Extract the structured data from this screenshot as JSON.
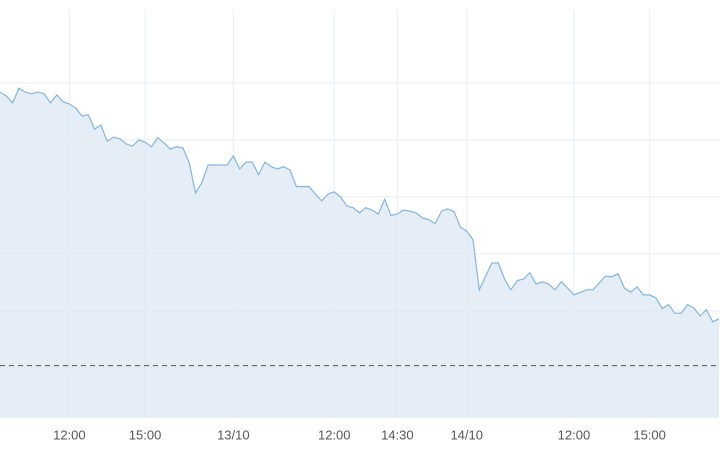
{
  "chart_data": {
    "type": "area",
    "categories": [
      null,
      null,
      null,
      null,
      null,
      null,
      null,
      null,
      null,
      null,
      null,
      "12:00",
      null,
      null,
      null,
      null,
      null,
      null,
      null,
      null,
      null,
      null,
      null,
      "15:00",
      null,
      null,
      null,
      null,
      null,
      null,
      null,
      null,
      null,
      null,
      null,
      null,
      null,
      "13/10",
      null,
      null,
      null,
      null,
      null,
      null,
      null,
      null,
      null,
      null,
      null,
      null,
      null,
      null,
      null,
      "12:00",
      null,
      null,
      null,
      null,
      null,
      null,
      null,
      null,
      null,
      "14:30",
      null,
      null,
      null,
      null,
      null,
      null,
      null,
      null,
      null,
      null,
      "14/10",
      null,
      null,
      null,
      null,
      null,
      null,
      null,
      null,
      null,
      null,
      null,
      null,
      null,
      null,
      null,
      null,
      "12:00",
      null,
      null,
      null,
      null,
      null,
      null,
      null,
      null,
      null,
      null,
      null,
      "15:00",
      null,
      null,
      null,
      null,
      null,
      null,
      null,
      null,
      null,
      null,
      null
    ],
    "series": [
      {
        "color": "#84b6dc",
        "fill": "#e5eef6",
        "values": [
          48.4,
          47.7,
          46.5,
          49.1,
          48.4,
          48.1,
          48.4,
          48.1,
          46.5,
          47.9,
          46.7,
          46.3,
          45.6,
          44.2,
          44.4,
          41.9,
          42.6,
          39.8,
          40.5,
          40.2,
          39.3,
          38.9,
          40.0,
          39.6,
          38.8,
          40.4,
          39.5,
          38.4,
          38.8,
          38.6,
          36.0,
          30.7,
          32.5,
          35.6,
          35.6,
          35.6,
          35.6,
          37.2,
          34.9,
          36.1,
          36.1,
          33.9,
          36.1,
          35.3,
          34.9,
          35.3,
          34.7,
          31.8,
          31.8,
          31.8,
          30.5,
          29.3,
          30.5,
          30.9,
          30.0,
          28.4,
          28.1,
          27.2,
          28.1,
          27.7,
          27.0,
          29.6,
          26.7,
          27.0,
          27.7,
          27.5,
          27.2,
          26.3,
          26.0,
          25.3,
          27.5,
          27.9,
          27.4,
          24.7,
          24.0,
          22.5,
          13.7,
          16.1,
          18.4,
          18.4,
          15.6,
          13.7,
          15.3,
          15.6,
          16.7,
          14.7,
          15.1,
          14.7,
          13.7,
          15.1,
          14.0,
          12.8,
          13.2,
          13.7,
          13.7,
          14.9,
          16.1,
          16.0,
          16.5,
          14.0,
          13.3,
          14.2,
          12.8,
          12.8,
          12.3,
          10.4,
          11.1,
          9.6,
          9.6,
          11.1,
          10.5,
          9.1,
          10.2,
          8.1,
          8.6
        ]
      }
    ],
    "ylim": [
      -8.8,
      62.8
    ],
    "yticks": [
      0,
      10,
      20,
      30,
      40,
      50
    ],
    "grid": true,
    "reference_line": 0.4
  }
}
